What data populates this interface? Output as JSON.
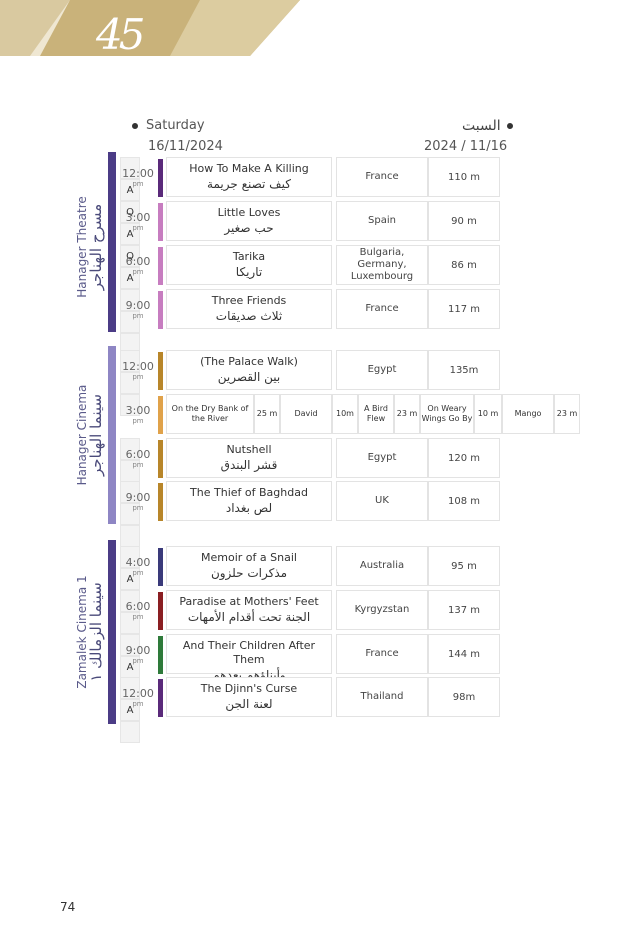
{
  "header": {
    "logo_text": "45"
  },
  "date": {
    "en_day": "Saturday",
    "en_date": "16/11/2024",
    "ar_day": "السبت",
    "ar_date": "2024 / 11/16"
  },
  "venues": [
    {
      "name_en": "Hanager Theatre",
      "name_ar": "مسرح الهناجر",
      "rows": [
        {
          "time": "12:00",
          "pm": "pm",
          "stripe": "#c77dc0",
          "title_en": "How To Make A Killing",
          "title_ar": "كيف تصنع جريمة",
          "country": "France",
          "duration": "110 m",
          "tags": [
            "",
            "A",
            ""
          ]
        },
        {
          "time": "3:00",
          "pm": "pm",
          "stripe": "#c77dc0",
          "title_en": "Little Loves",
          "title_ar": "حب صغير",
          "country": "Spain",
          "duration": "90 m",
          "tags": [
            "Q",
            "A",
            ""
          ]
        },
        {
          "time": "6:00",
          "pm": "pm",
          "stripe": "#c77dc0",
          "title_en": "Tarika",
          "title_ar": "تاريكا",
          "country": "Bulgaria, Germany, Luxembourg",
          "duration": "86 m",
          "tags": [
            "Q",
            "A",
            ""
          ]
        },
        {
          "time": "9:00",
          "pm": "pm",
          "stripe": "#c77dc0",
          "title_en": "Three Friends",
          "title_ar": "ثلاث صديقات",
          "country": "France",
          "duration": "117 m",
          "tags": [
            "",
            "",
            ""
          ]
        }
      ]
    },
    {
      "name_en": "Hanager Cinema",
      "name_ar": "سينما الهناجر",
      "rows": [
        {
          "time": "12:00",
          "pm": "pm",
          "stripe": "#b8862a",
          "title_en": "(The Palace Walk)",
          "title_ar": "بين القصرين",
          "country": "Egypt",
          "duration": "135m",
          "tags": [
            "",
            "",
            ""
          ]
        },
        {
          "time": "6:00",
          "pm": "pm",
          "stripe": "#b8862a",
          "title_en": "Nutshell",
          "title_ar": "قشر البندق",
          "country": "Egypt",
          "duration": "120 m",
          "tags": [
            "",
            "",
            ""
          ]
        },
        {
          "time": "9:00",
          "pm": "pm",
          "stripe": "#b8862a",
          "title_en": "The Thief of Baghdad",
          "title_ar": "لص بغداد",
          "country": "UK",
          "duration": "108 m",
          "tags": [
            "",
            "",
            ""
          ]
        }
      ],
      "shorts": {
        "time": "3:00",
        "pm": "pm",
        "stripe": "#e0a24a",
        "items": [
          {
            "title": "On the Dry Bank of the River",
            "duration": "25 m"
          },
          {
            "title": "David",
            "duration": "10m"
          },
          {
            "title": "A Bird Flew",
            "duration": "23 m"
          },
          {
            "title": "On Weary Wings Go By",
            "duration": "10 m"
          },
          {
            "title": "Mango",
            "duration": "23 m"
          }
        ]
      }
    },
    {
      "name_en": "Zamalek Cinema 1",
      "name_ar": "سينما الزمالك ١",
      "rows": [
        {
          "time": "4:00",
          "pm": "pm",
          "stripe": "#3a3a7a",
          "title_en": "Memoir of a Snail",
          "title_ar": "مذكرات حلزون",
          "country": "Australia",
          "duration": "95 m",
          "tags": [
            "",
            "A",
            ""
          ]
        },
        {
          "time": "6:00",
          "pm": "pm",
          "stripe": "#8a1e22",
          "title_en": "Paradise at Mothers' Feet",
          "title_ar": "الجنة تحت أقدام الأمهات",
          "country": "Kyrgyzstan",
          "duration": "137 m",
          "tags": [
            "",
            "",
            ""
          ]
        },
        {
          "time": "9:00",
          "pm": "pm",
          "stripe": "#2e7a3a",
          "title_en": "And Their Children After Them",
          "title_ar": "وأبناؤهم بعدهم",
          "country": "France",
          "duration": "144 m",
          "tags": [
            "",
            "A",
            ""
          ]
        },
        {
          "time": "12:00",
          "pm": "pm",
          "stripe": "#5a2a7a",
          "title_en": "The Djinn's Curse",
          "title_ar": "لعنة الجن",
          "country": "Thailand",
          "duration": "98m",
          "tags": [
            "",
            "A",
            ""
          ]
        }
      ]
    }
  ],
  "colors": {
    "venue_bar": "#4b3c86",
    "venue_bar_light": "#8e86c4",
    "banner_gold": "#c9b27a",
    "banner_cream": "#efe7d2"
  },
  "page_number": "74"
}
